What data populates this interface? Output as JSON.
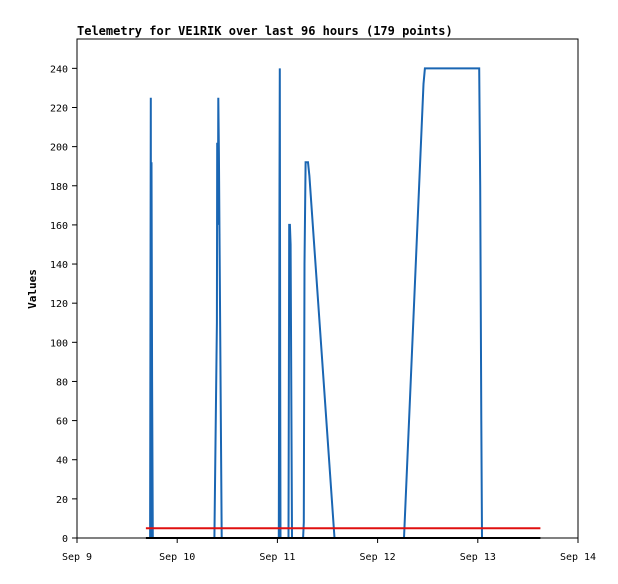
{
  "chart_data": {
    "type": "line",
    "title": "Telemetry for VE1RIK over last 96 hours (179 points)",
    "xlabel": "",
    "ylabel": "Values",
    "x_ticks": [
      "Sep 9",
      "Sep 10",
      "Sep 11",
      "Sep 12",
      "Sep 13",
      "Sep 14"
    ],
    "xlim": [
      "Sep 9 00:00",
      "Sep 14 00:00"
    ],
    "y_ticks": [
      0,
      20,
      40,
      60,
      80,
      100,
      120,
      140,
      160,
      180,
      200,
      220,
      240
    ],
    "ylim": [
      0,
      255
    ],
    "grid": false,
    "legend": "none",
    "series": [
      {
        "color": "#1a66b3",
        "x": [
          "Sep 9 17:30",
          "Sep 9 17:40",
          "Sep 9 17:45",
          "Sep 9 17:50",
          "Sep 9 18:00",
          "Sep 9 18:10",
          "Sep 10 08:55",
          "Sep 10 09:30",
          "Sep 10 09:35",
          "Sep 10 09:45",
          "Sep 10 09:50",
          "Sep 10 10:00",
          "Sep 10 10:40",
          "Sep 11 00:20",
          "Sep 11 00:30",
          "Sep 11 00:35",
          "Sep 11 00:40",
          "Sep 11 00:45",
          "Sep 11 02:40",
          "Sep 11 02:50",
          "Sep 11 03:00",
          "Sep 11 03:10",
          "Sep 11 03:30",
          "Sep 11 06:10",
          "Sep 11 06:20",
          "Sep 11 06:30",
          "Sep 11 06:45",
          "Sep 11 07:20",
          "Sep 11 07:40",
          "Sep 11 13:40",
          "Sep 12 06:20",
          "Sep 12 11:00",
          "Sep 12 11:20",
          "Sep 13 00:20",
          "Sep 13 00:35",
          "Sep 13 00:50",
          "Sep 13 01:00"
        ],
        "y": [
          0,
          225,
          0,
          192,
          80,
          0,
          0,
          110,
          202,
          160,
          225,
          197,
          0,
          0,
          180,
          240,
          80,
          0,
          0,
          160,
          160,
          150,
          0,
          0,
          8,
          140,
          192,
          192,
          185,
          0,
          0,
          232,
          240,
          240,
          180,
          60,
          0
        ]
      },
      {
        "color": "#e01010",
        "x": [
          "Sep 9 16:30",
          "Sep 13 15:00"
        ],
        "y": [
          5,
          5
        ]
      },
      {
        "color": "#000000",
        "x": [
          "Sep 9 16:30",
          "Sep 13 15:00"
        ],
        "y": [
          0,
          0
        ]
      }
    ]
  }
}
